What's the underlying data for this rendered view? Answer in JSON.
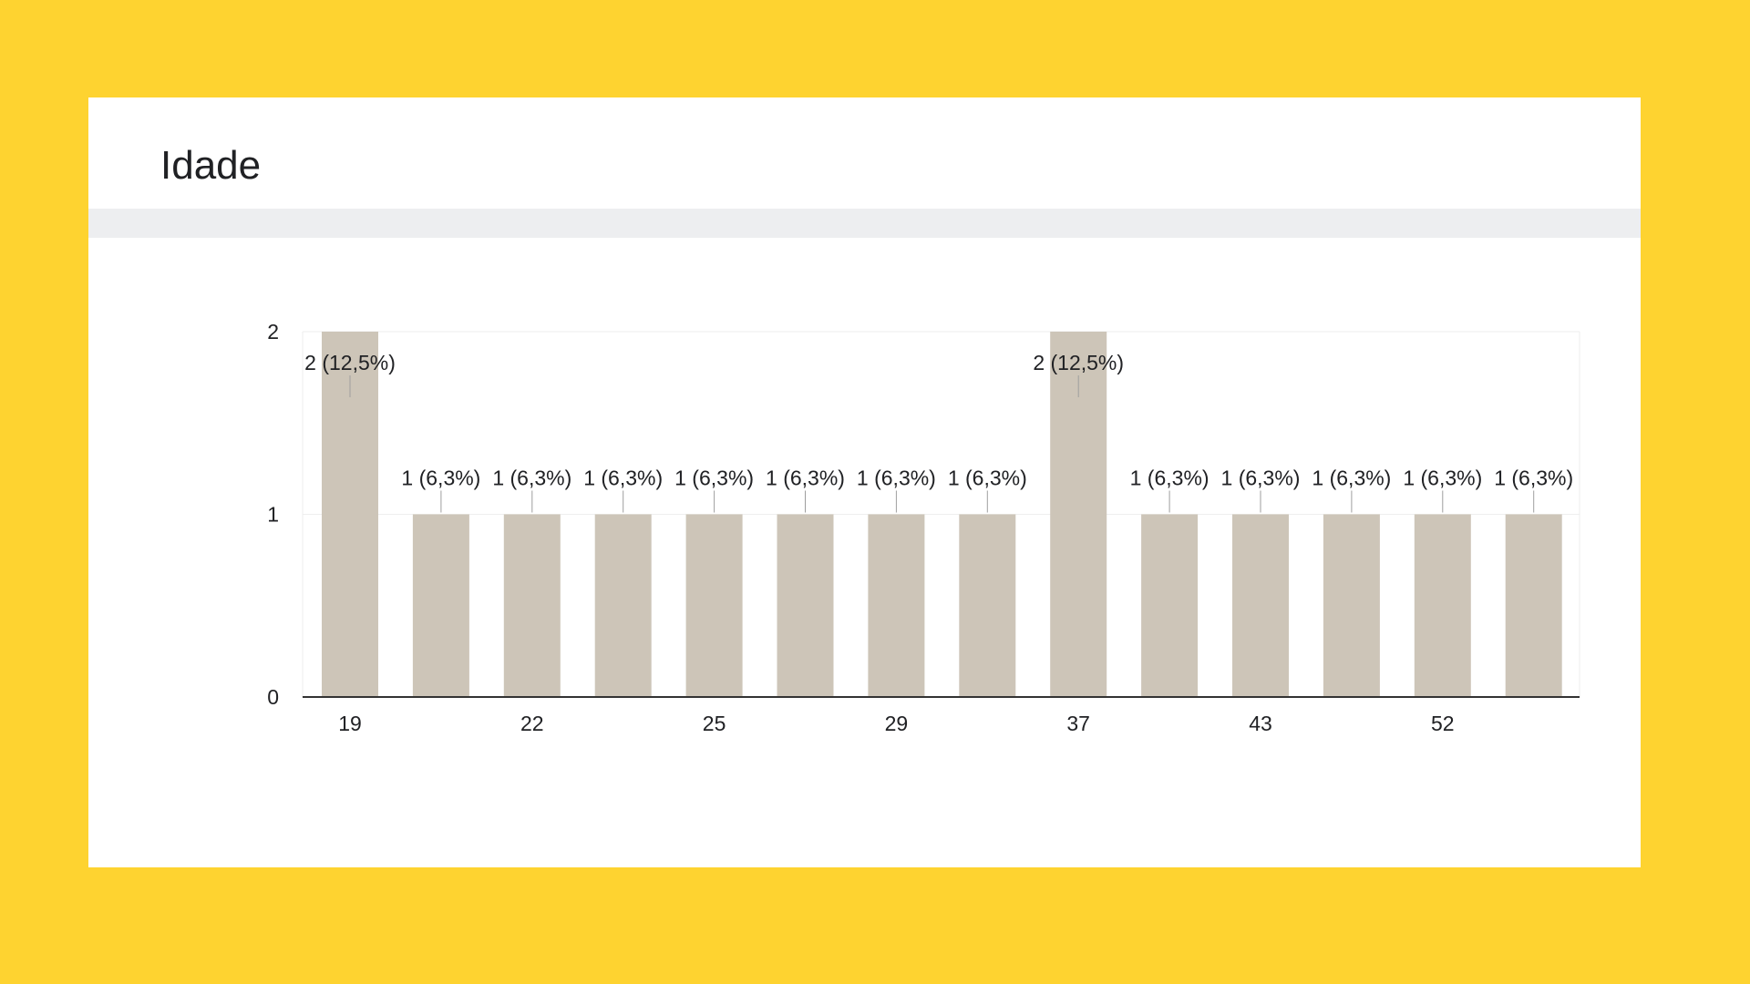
{
  "page": {
    "background": "#FED330",
    "card_background": "#FFFFFF"
  },
  "card": {
    "title": "Idade"
  },
  "chart_data": {
    "type": "bar",
    "title": "Idade",
    "categories": [
      "19",
      "",
      "22",
      "",
      "25",
      "",
      "29",
      "",
      "37",
      "",
      "43",
      "",
      "52",
      ""
    ],
    "x_tick_labels": [
      "19",
      "22",
      "25",
      "29",
      "37",
      "43",
      "52"
    ],
    "values": [
      2,
      1,
      1,
      1,
      1,
      1,
      1,
      1,
      2,
      1,
      1,
      1,
      1,
      1
    ],
    "data_labels": [
      "2 (12,5%)",
      "1 (6,3%)",
      "1 (6,3%)",
      "1 (6,3%)",
      "1 (6,3%)",
      "1 (6,3%)",
      "1 (6,3%)",
      "1 (6,3%)",
      "2 (12,5%)",
      "1 (6,3%)",
      "1 (6,3%)",
      "1 (6,3%)",
      "1 (6,3%)",
      "1 (6,3%)"
    ],
    "y_ticks": [
      0,
      1,
      2
    ],
    "ylim": [
      0,
      2
    ],
    "xlabel": "",
    "ylabel": "",
    "grid": true,
    "bar_color": "#CDC5B8"
  }
}
